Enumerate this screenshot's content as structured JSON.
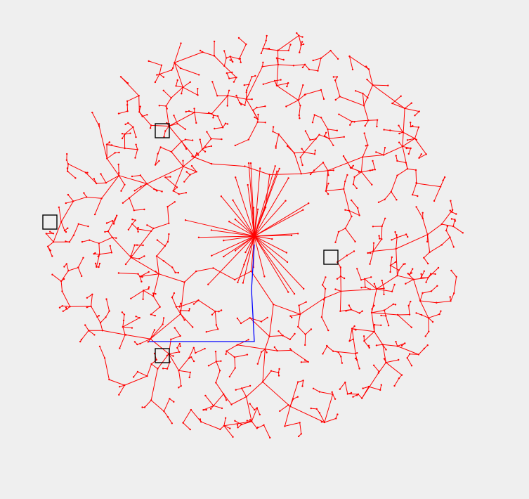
{
  "colors": {
    "background": "#efefef",
    "tree_edge": "#ff0000",
    "tree_node": "#ff0000",
    "path": "#0000ff",
    "obstacle_stroke": "#000000"
  },
  "scene": {
    "description_type": "rrt-like random tree visualization",
    "tree": {
      "node_count": 900,
      "seed": 73
    },
    "obstacle_count": 4,
    "path_segment_count": 4
  }
}
